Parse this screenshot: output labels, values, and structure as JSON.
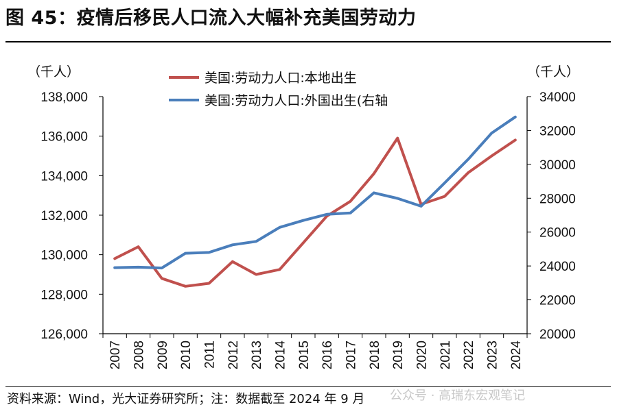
{
  "title": "图 45：疫情后移民人口流入大幅补充美国劳动力",
  "source_note": "资料来源：Wind，光大证券研究所；注：数据截至 2024 年 9 月",
  "watermark": "公众号 · 高瑞东宏观笔记",
  "chart_data": {
    "type": "line",
    "categories": [
      "2007",
      "2008",
      "2009",
      "2010",
      "2011",
      "2012",
      "2013",
      "2014",
      "2015",
      "2016",
      "2017",
      "2018",
      "2019",
      "2020",
      "2021",
      "2022",
      "2023",
      "2024"
    ],
    "left_unit": "（千人）",
    "right_unit": "（千人）",
    "left_axis": {
      "ylim": [
        126000,
        138000
      ],
      "ticks": [
        126000,
        128000,
        130000,
        132000,
        134000,
        136000,
        138000
      ],
      "tick_labels": [
        "126,000",
        "128,000",
        "130,000",
        "132,000",
        "134,000",
        "136,000",
        "138,000"
      ]
    },
    "right_axis": {
      "ylim": [
        20000,
        34000
      ],
      "ticks": [
        20000,
        22000,
        24000,
        26000,
        28000,
        30000,
        32000,
        34000
      ],
      "tick_labels": [
        "20000",
        "22000",
        "24000",
        "26000",
        "28000",
        "30000",
        "32000",
        "34000"
      ]
    },
    "series": [
      {
        "name": "美国:劳动力人口:本地出生",
        "color": "#c0504d",
        "axis": "left",
        "values": [
          129800,
          130400,
          128800,
          128400,
          128550,
          129650,
          129000,
          129250,
          130600,
          131950,
          132700,
          134100,
          135900,
          132550,
          132950,
          134150,
          135000,
          135800
        ]
      },
      {
        "name": "美国:劳动力人口:外国出生(右轴",
        "color": "#4a7ebb",
        "axis": "right",
        "values": [
          23900,
          23930,
          23880,
          24750,
          24800,
          25250,
          25450,
          26280,
          26690,
          27050,
          27130,
          28320,
          27990,
          27530,
          28900,
          30300,
          31850,
          32800
        ]
      }
    ]
  }
}
